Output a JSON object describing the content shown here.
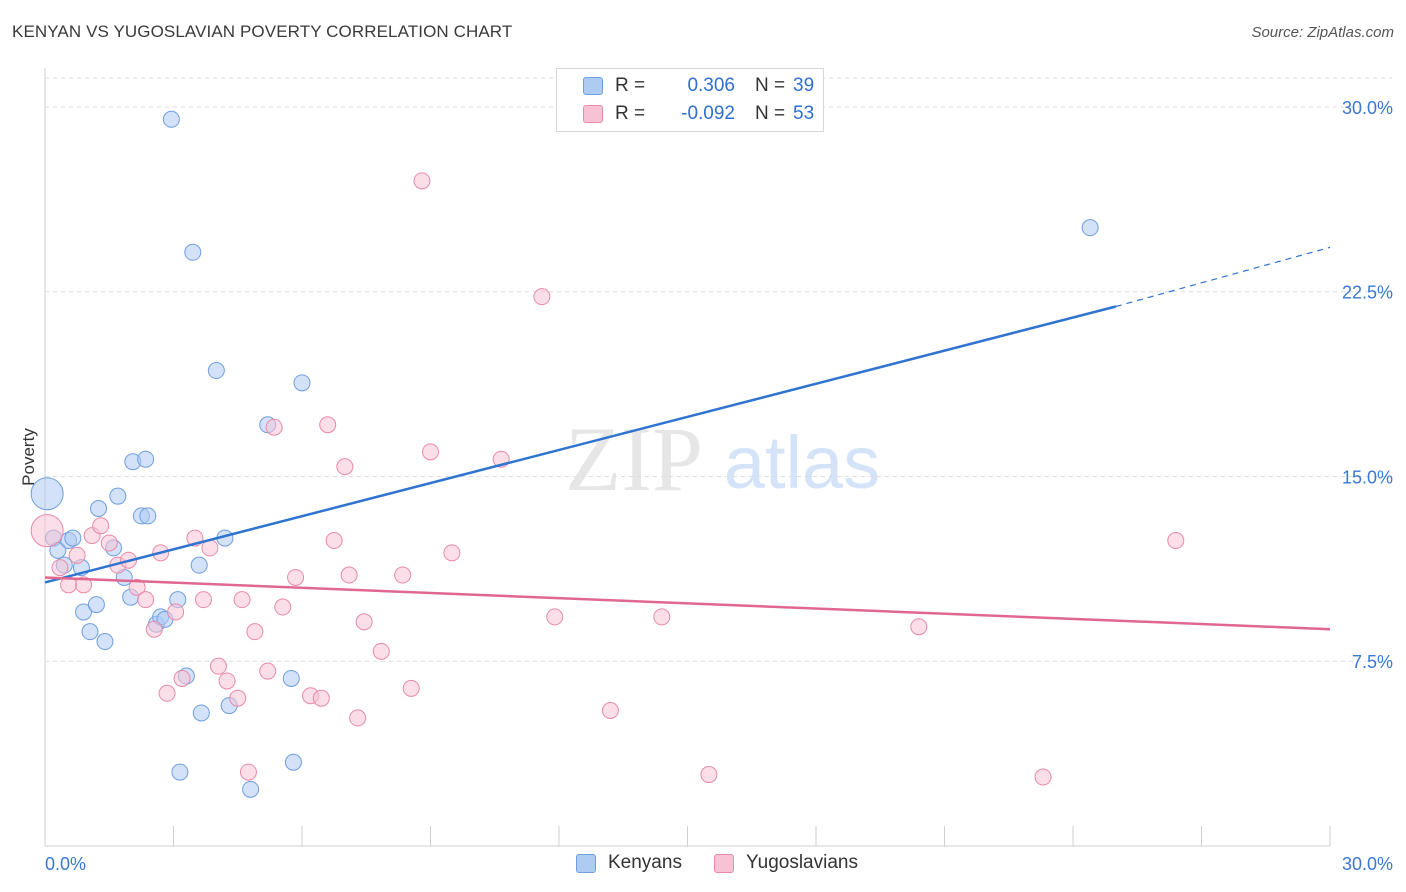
{
  "title": "KENYAN VS YUGOSLAVIAN POVERTY CORRELATION CHART",
  "source": "Source: ZipAtlas.com",
  "watermark": {
    "zip": "ZIP",
    "atlas": "atlas"
  },
  "legend": {
    "rows": [
      {
        "r_label": "R =",
        "r_value": "0.306",
        "n_label": "N =",
        "n_value": "39"
      },
      {
        "r_label": "R =",
        "r_value": "-0.092",
        "n_label": "N =",
        "n_value": "53"
      }
    ]
  },
  "colors": {
    "kenyan_fill": "#aecbf2",
    "kenyan_stroke": "#6f9ee0",
    "kenyan_line": "#2f74d0",
    "yugo_fill": "#f7c3d4",
    "yugo_stroke": "#e88ba8",
    "yugo_line": "#e0688f",
    "grid": "#dcdcdc",
    "tick_text": "#3a78d4"
  },
  "chart_data": {
    "type": "scatter",
    "title": "KENYAN VS YUGOSLAVIAN POVERTY CORRELATION CHART",
    "xlabel": "",
    "ylabel": "Poverty",
    "xlim": [
      0,
      30
    ],
    "ylim": [
      0,
      31.5
    ],
    "x_tick_labels": [
      "0.0%",
      "30.0%"
    ],
    "y_ticks": [
      7.5,
      15.0,
      22.5,
      30.0
    ],
    "y_tick_labels": [
      "7.5%",
      "15.0%",
      "22.5%",
      "30.0%"
    ],
    "grid": "horizontal dashed",
    "legend_position": "top-center",
    "series": [
      {
        "name": "Kenyans",
        "points": [
          [
            0.05,
            14.3
          ],
          [
            0.2,
            12.5
          ],
          [
            0.3,
            12.0
          ],
          [
            0.45,
            11.4
          ],
          [
            0.55,
            12.4
          ],
          [
            0.65,
            12.5
          ],
          [
            0.85,
            11.3
          ],
          [
            0.9,
            9.5
          ],
          [
            1.05,
            8.7
          ],
          [
            1.2,
            9.8
          ],
          [
            1.25,
            13.7
          ],
          [
            1.4,
            8.3
          ],
          [
            1.6,
            12.1
          ],
          [
            1.7,
            14.2
          ],
          [
            1.85,
            10.9
          ],
          [
            2.0,
            10.1
          ],
          [
            2.05,
            15.6
          ],
          [
            2.25,
            13.4
          ],
          [
            2.35,
            15.7
          ],
          [
            2.4,
            13.4
          ],
          [
            2.6,
            9.0
          ],
          [
            2.7,
            9.3
          ],
          [
            2.8,
            9.2
          ],
          [
            2.95,
            29.5
          ],
          [
            3.1,
            10.0
          ],
          [
            3.15,
            3.0
          ],
          [
            3.3,
            6.9
          ],
          [
            3.45,
            24.1
          ],
          [
            3.6,
            11.4
          ],
          [
            3.65,
            5.4
          ],
          [
            4.0,
            19.3
          ],
          [
            4.2,
            12.5
          ],
          [
            4.3,
            5.7
          ],
          [
            4.8,
            2.3
          ],
          [
            5.2,
            17.1
          ],
          [
            5.75,
            6.8
          ],
          [
            5.8,
            3.4
          ],
          [
            6.0,
            18.8
          ],
          [
            24.4,
            25.1
          ]
        ],
        "trend": {
          "x0": 0.0,
          "y0": 10.7,
          "x1": 25.0,
          "y1": 21.9,
          "dashed_to_x": 30.0,
          "dashed_to_y": 24.3
        }
      },
      {
        "name": "Yugoslavians",
        "points": [
          [
            0.05,
            12.8
          ],
          [
            0.35,
            11.3
          ],
          [
            0.55,
            10.6
          ],
          [
            0.75,
            11.8
          ],
          [
            0.9,
            10.6
          ],
          [
            1.1,
            12.6
          ],
          [
            1.3,
            13.0
          ],
          [
            1.5,
            12.3
          ],
          [
            1.7,
            11.4
          ],
          [
            1.95,
            11.6
          ],
          [
            2.15,
            10.5
          ],
          [
            2.35,
            10.0
          ],
          [
            2.55,
            8.8
          ],
          [
            2.7,
            11.9
          ],
          [
            2.85,
            6.2
          ],
          [
            3.05,
            9.5
          ],
          [
            3.2,
            6.8
          ],
          [
            3.5,
            12.5
          ],
          [
            3.7,
            10.0
          ],
          [
            3.85,
            12.1
          ],
          [
            4.05,
            7.3
          ],
          [
            4.25,
            6.7
          ],
          [
            4.5,
            6.0
          ],
          [
            4.6,
            10.0
          ],
          [
            4.75,
            3.0
          ],
          [
            4.9,
            8.7
          ],
          [
            5.2,
            7.1
          ],
          [
            5.35,
            17.0
          ],
          [
            5.55,
            9.7
          ],
          [
            5.85,
            10.9
          ],
          [
            6.2,
            6.1
          ],
          [
            6.45,
            6.0
          ],
          [
            6.6,
            17.1
          ],
          [
            6.75,
            12.4
          ],
          [
            7.0,
            15.4
          ],
          [
            7.1,
            11.0
          ],
          [
            7.3,
            5.2
          ],
          [
            7.45,
            9.1
          ],
          [
            7.85,
            7.9
          ],
          [
            8.35,
            11.0
          ],
          [
            8.55,
            6.4
          ],
          [
            8.8,
            27.0
          ],
          [
            9.0,
            16.0
          ],
          [
            9.5,
            11.9
          ],
          [
            10.65,
            15.7
          ],
          [
            11.6,
            22.3
          ],
          [
            11.9,
            9.3
          ],
          [
            13.2,
            5.5
          ],
          [
            14.4,
            9.3
          ],
          [
            15.5,
            2.9
          ],
          [
            20.4,
            8.9
          ],
          [
            23.3,
            2.8
          ],
          [
            26.4,
            12.4
          ]
        ],
        "trend": {
          "x0": 0.0,
          "y0": 10.9,
          "x1": 30.0,
          "y1": 8.8
        }
      }
    ]
  },
  "bottom_legend": [
    {
      "label": "Kenyans"
    },
    {
      "label": "Yugoslavians"
    }
  ]
}
